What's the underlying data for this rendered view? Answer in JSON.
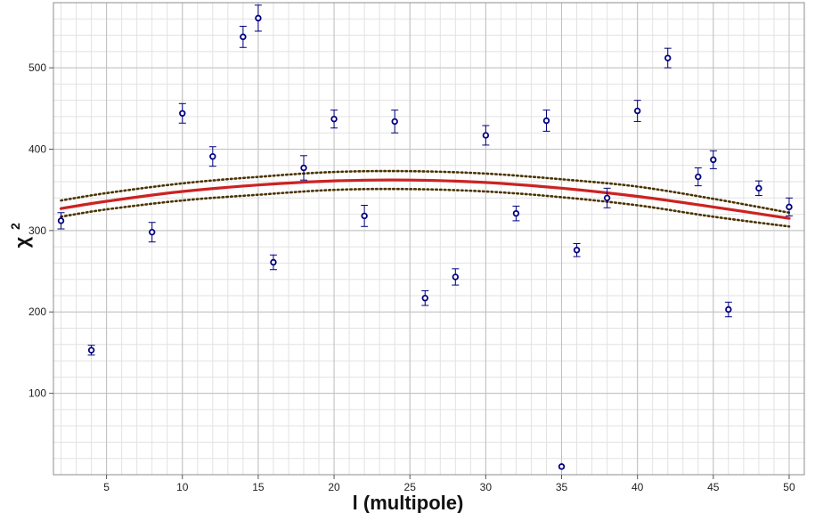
{
  "chart_data": {
    "type": "scatter",
    "title": "",
    "xlabel": "l (multipole)",
    "ylabel": "χ",
    "ylabel_superscript": "2",
    "xlim": [
      1.5,
      51
    ],
    "ylim": [
      0,
      580
    ],
    "xticks": [
      5,
      10,
      15,
      20,
      25,
      30,
      35,
      40,
      45,
      50
    ],
    "yticks": [
      100,
      200,
      300,
      400,
      500
    ],
    "grid": true,
    "legend": "none",
    "colors": {
      "points": "#00007f",
      "fit": "#cc2222",
      "band": "#4a3300",
      "grid_major": "#bfbfbf",
      "grid_minor": "#e2e2e2",
      "plot_border": "#8c8c8c"
    },
    "series": [
      {
        "type": "scatter-errorbar",
        "x": [
          2,
          4,
          8,
          10,
          12,
          14,
          15,
          16,
          18,
          20,
          22,
          24,
          26,
          28,
          30,
          32,
          34,
          35,
          36,
          38,
          40,
          42,
          44,
          45,
          46,
          48,
          50
        ],
        "y": [
          312,
          153,
          298,
          444,
          391,
          538,
          561,
          261,
          377,
          437,
          318,
          434,
          217,
          243,
          417,
          321,
          435,
          10,
          276,
          340,
          447,
          512,
          366,
          387,
          203,
          352,
          329
        ],
        "err": [
          10,
          6,
          12,
          12,
          12,
          13,
          16,
          9,
          15,
          11,
          13,
          14,
          9,
          10,
          12,
          9,
          13,
          0,
          8,
          12,
          13,
          12,
          11,
          11,
          9,
          9,
          11
        ]
      },
      {
        "type": "line",
        "x": [
          2,
          5,
          10,
          15,
          20,
          25,
          30,
          35,
          40,
          45,
          50
        ],
        "y": [
          327,
          336,
          348,
          356,
          361,
          362,
          359,
          352,
          342,
          329,
          315
        ]
      },
      {
        "type": "line-dotted",
        "x": [
          2,
          5,
          10,
          15,
          20,
          25,
          30,
          35,
          40,
          45,
          50
        ],
        "y": [
          337,
          346,
          358,
          366,
          372,
          373,
          370,
          363,
          354,
          339,
          322
        ]
      },
      {
        "type": "line-dotted",
        "x": [
          2,
          5,
          10,
          15,
          20,
          25,
          30,
          35,
          40,
          45,
          50
        ],
        "y": [
          317,
          326,
          337,
          344,
          350,
          351,
          348,
          341,
          331,
          317,
          305
        ]
      }
    ]
  }
}
